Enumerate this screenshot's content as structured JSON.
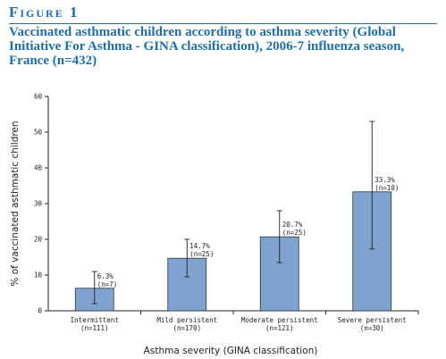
{
  "figure": {
    "label": "Figure 1",
    "title": "Vaccinated asthmatic children according to asthma severity (Global Initiative For Asthma - GINA classification), 2006-7 influenza season, France (n=432)"
  },
  "chart_data": {
    "type": "bar",
    "xlabel": "Asthma severity (GINA classification)",
    "ylabel": "% of vaccinated asthmatic children",
    "ylim": [
      0,
      60
    ],
    "yticks": [
      0,
      10,
      20,
      30,
      40,
      50,
      60
    ],
    "categories": [
      {
        "name": "Intermittent",
        "n": "(n=111)"
      },
      {
        "name": "Mild persistent",
        "n": "(n=170)"
      },
      {
        "name": "Moderate persistent",
        "n": "(n=121)"
      },
      {
        "name": "Severe persistent",
        "n": "(n=30)"
      }
    ],
    "values": [
      6.3,
      14.7,
      20.7,
      33.3
    ],
    "value_labels": [
      "6.3%",
      "14.7%",
      "20.7%",
      "33.3%"
    ],
    "group_n_labels": [
      "(n=7)",
      "(n=25)",
      "(n=25)",
      "(n=10)"
    ],
    "error_low": [
      2,
      9.5,
      13.5,
      17.3
    ],
    "error_high": [
      11,
      20,
      28,
      53
    ],
    "bar_color": "#7ea3cf",
    "bar_edge_color": "#333333",
    "grid": false
  }
}
